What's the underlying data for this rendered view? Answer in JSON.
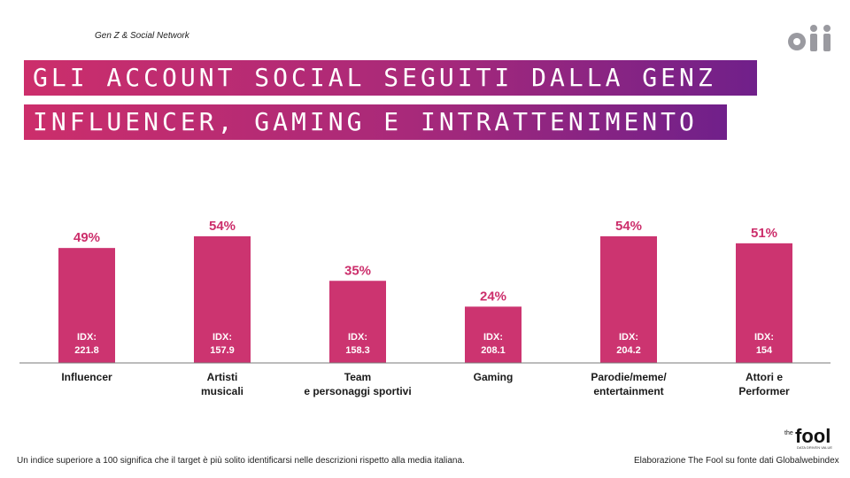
{
  "header": {
    "section_label": "Gen Z & Social Network",
    "title_line1": "GLI ACCOUNT SOCIAL SEGUITI DALLA GENZ",
    "title_line2": "INFLUENCER, GAMING E INTRATTENIMENTO"
  },
  "logos": {
    "top_right": "oii",
    "bottom_right_small": "the",
    "bottom_right_big": "fool",
    "bottom_right_tagline": "DATA DRIVEN VALUE"
  },
  "colors": {
    "bar": "#cc3470",
    "accent": "#cc2e6b",
    "purple": "#70208a",
    "axis": "#7a7a7a"
  },
  "chart_data": {
    "type": "bar",
    "categories": [
      [
        "Influencer"
      ],
      [
        "Artisti",
        "musicali"
      ],
      [
        "Team",
        "e personaggi sportivi"
      ],
      [
        "Gaming"
      ],
      [
        "Parodie/meme/",
        "entertainment"
      ],
      [
        "Attori e",
        "Performer"
      ]
    ],
    "values": [
      49,
      54,
      35,
      24,
      54,
      51
    ],
    "value_labels": [
      "49%",
      "54%",
      "35%",
      "24%",
      "54%",
      "51%"
    ],
    "idx_prefix": "IDX:",
    "idx_values": [
      "221.8",
      "157.9",
      "158.3",
      "208.1",
      "204.2",
      "154"
    ],
    "ylim": [
      0,
      100
    ],
    "grid": false,
    "legend": "none"
  },
  "footer": {
    "note": "Un indice superiore a 100 significa che il target è più solito identificarsi nelle descrizioni rispetto alla media italiana.",
    "source": "Elaborazione The Fool su fonte dati Globalwebindex"
  }
}
